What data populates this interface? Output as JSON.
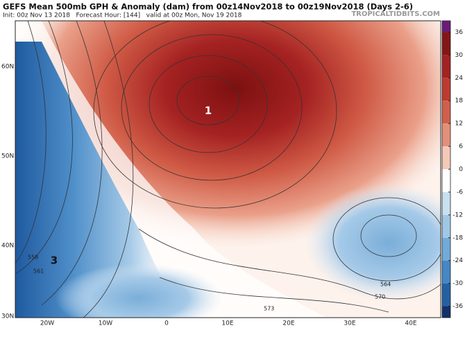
{
  "header": {
    "title": "GEFS Mean 500mb GPH & Anomaly (dam) from 00z14Nov2018 to 00z19Nov2018 (Days 2-6)",
    "subtitle": "Init: 00z Nov 13 2018   Forecast Hour: [144]   valid at 00z Mon, Nov 19 2018",
    "source": "TROPICALTIDBITS.COM"
  },
  "map": {
    "lat_labels": [
      "60N",
      "50N",
      "40N",
      "30N"
    ],
    "lon_labels": [
      "20W",
      "10W",
      "0",
      "10E",
      "20E",
      "30E",
      "40E"
    ],
    "contour_labels": [
      "558",
      "561",
      "564",
      "573",
      "570"
    ],
    "annotations": [
      "1",
      "3"
    ]
  },
  "colorbar": {
    "lim": [
      -39,
      39
    ],
    "ticks": [
      36,
      30,
      24,
      18,
      12,
      6,
      0,
      -6,
      -12,
      -18,
      -24,
      -30,
      -36
    ],
    "colors": [
      "#6a1b78",
      "#861616",
      "#a32222",
      "#bd3a30",
      "#d0604b",
      "#e2907a",
      "#f4c9b8",
      "#ffffff",
      "#c9e0f1",
      "#a0c8e6",
      "#72abd8",
      "#4488c5",
      "#2460a4",
      "#13306d"
    ]
  }
}
